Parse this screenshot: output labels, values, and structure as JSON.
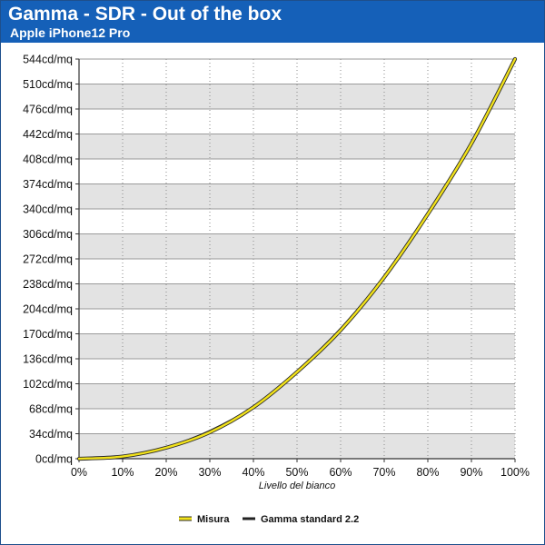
{
  "header": {
    "title": "Gamma - SDR - Out of the box",
    "subtitle": "Apple iPhone12 Pro"
  },
  "colors": {
    "header_bg": "#1560b8",
    "band": "#e3e3e3",
    "series_measured": "#f2e21a",
    "series_reference": "#222222"
  },
  "chart_data": {
    "type": "line",
    "title": "Gamma - SDR - Out of the box",
    "subtitle": "Apple iPhone12 Pro",
    "xlabel": "Livello del bianco",
    "ylabel": "",
    "x": [
      0,
      10,
      20,
      30,
      40,
      50,
      60,
      70,
      80,
      90,
      100
    ],
    "xlim": [
      0,
      100
    ],
    "ylim": [
      0,
      544
    ],
    "x_ticks": [
      "0%",
      "10%",
      "20%",
      "30%",
      "40%",
      "50%",
      "60%",
      "70%",
      "80%",
      "90%",
      "100%"
    ],
    "y_ticks": [
      "0cd/mq",
      "34cd/mq",
      "68cd/mq",
      "102cd/mq",
      "136cd/mq",
      "170cd/mq",
      "204cd/mq",
      "238cd/mq",
      "272cd/mq",
      "306cd/mq",
      "340cd/mq",
      "374cd/mq",
      "408cd/mq",
      "442cd/mq",
      "476cd/mq",
      "510cd/mq",
      "544cd/mq"
    ],
    "y_tick_values": [
      0,
      34,
      68,
      102,
      136,
      170,
      204,
      238,
      272,
      306,
      340,
      374,
      408,
      442,
      476,
      510,
      544
    ],
    "grid": true,
    "legend_position": "bottom-center",
    "series": [
      {
        "name": "Misura",
        "color": "#f2e21a",
        "values": [
          0,
          3,
          15,
          36,
          70,
          118,
          175,
          247,
          333,
          429,
          544
        ]
      },
      {
        "name": "Gamma standard 2.2",
        "color": "#222222",
        "values": [
          0,
          3.4,
          15.7,
          38,
          71,
          119,
          177,
          248,
          332,
          430,
          544
        ]
      }
    ]
  }
}
